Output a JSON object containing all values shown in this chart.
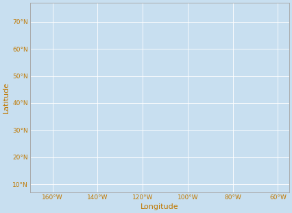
{
  "xlim": [
    -170,
    -55
  ],
  "ylim": [
    7,
    77
  ],
  "xticks": [
    -160,
    -140,
    -120,
    -100,
    -80,
    -60
  ],
  "yticks": [
    10,
    20,
    30,
    40,
    50,
    60,
    70
  ],
  "xlabel": "Longitude",
  "ylabel": "Latitude",
  "background_color": "#c8dff0",
  "land_color": "#f0a800",
  "land_edge_color": "#b07800",
  "obs_color": "#cc2200",
  "grid_color": "#ffffff",
  "tick_color": "#c07800",
  "label_color": "#c07800",
  "axis_spine_color": "#aaaaaa",
  "figsize": [
    4.26,
    3.1
  ],
  "dpi": 100
}
